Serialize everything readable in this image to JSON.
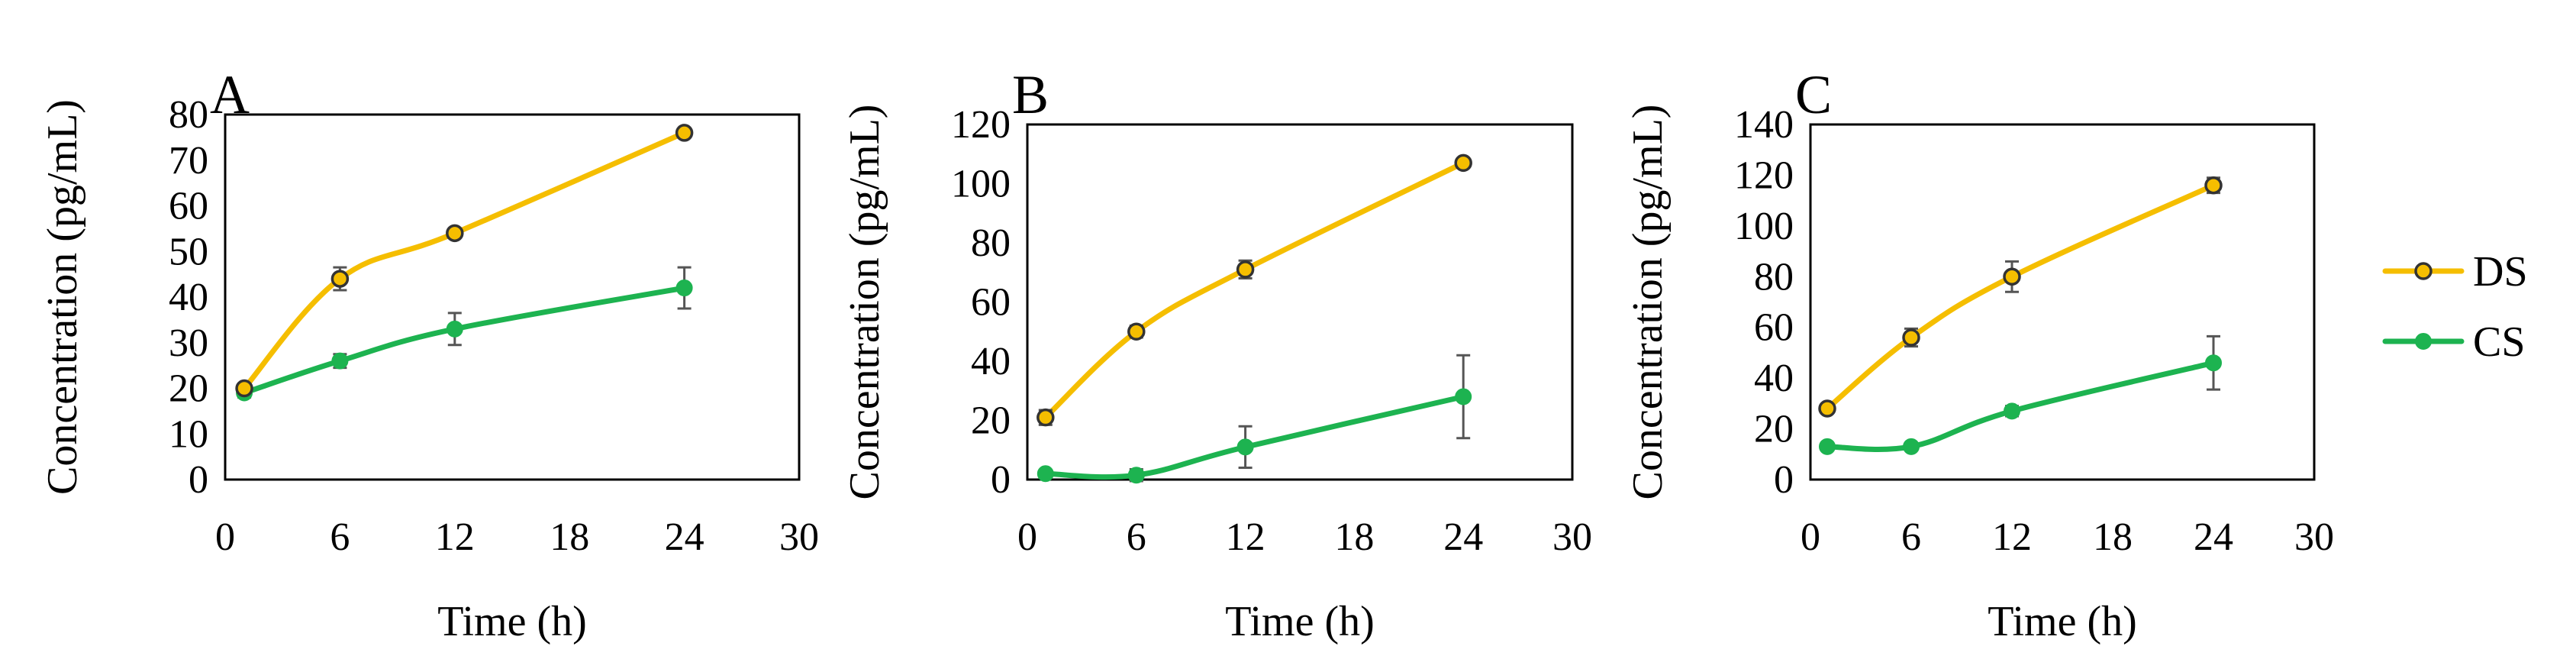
{
  "chart_data": [
    {
      "type": "line",
      "panel_label": "A",
      "xlabel": "Time (h)",
      "ylabel": "Concentration (pg/mL)",
      "xlim": [
        0,
        30
      ],
      "ylim": [
        0,
        80
      ],
      "xticks": [
        0,
        6,
        12,
        18,
        24,
        30
      ],
      "yticks": [
        0,
        10,
        20,
        30,
        40,
        50,
        60,
        70,
        80
      ],
      "grid": false,
      "series": [
        {
          "name": "DS",
          "x": [
            1,
            6,
            12,
            24
          ],
          "values": [
            20,
            44,
            54,
            76
          ],
          "errors": [
            1,
            2.5,
            1,
            1
          ]
        },
        {
          "name": "CS",
          "x": [
            1,
            6,
            12,
            24
          ],
          "values": [
            19,
            26,
            33,
            42
          ],
          "errors": [
            1,
            1.5,
            3.5,
            4.5
          ]
        }
      ]
    },
    {
      "type": "line",
      "panel_label": "B",
      "xlabel": "Time (h)",
      "ylabel": "Concentration (pg/mL)",
      "xlim": [
        0,
        30
      ],
      "ylim": [
        0,
        120
      ],
      "xticks": [
        0,
        6,
        12,
        18,
        24,
        30
      ],
      "yticks": [
        0,
        20,
        40,
        60,
        80,
        100,
        120
      ],
      "grid": false,
      "series": [
        {
          "name": "DS",
          "x": [
            1,
            6,
            12,
            24
          ],
          "values": [
            21,
            50,
            71,
            107
          ],
          "errors": [
            2.5,
            2,
            3,
            1.5
          ]
        },
        {
          "name": "CS",
          "x": [
            1,
            6,
            12,
            24
          ],
          "values": [
            2,
            1.5,
            11,
            28
          ],
          "errors": [
            0.8,
            2,
            7,
            14
          ]
        }
      ]
    },
    {
      "type": "line",
      "panel_label": "C",
      "xlabel": "Time (h)",
      "ylabel": "Concentration (pg/mL)",
      "xlim": [
        0,
        30
      ],
      "ylim": [
        0,
        140
      ],
      "xticks": [
        0,
        6,
        12,
        18,
        24,
        30
      ],
      "yticks": [
        0,
        20,
        40,
        60,
        80,
        100,
        120,
        140
      ],
      "grid": false,
      "series": [
        {
          "name": "DS",
          "x": [
            1,
            6,
            12,
            24
          ],
          "values": [
            28,
            56,
            80,
            116
          ],
          "errors": [
            1.5,
            3.5,
            6,
            3
          ]
        },
        {
          "name": "CS",
          "x": [
            1,
            6,
            12,
            24
          ],
          "values": [
            13,
            13,
            27,
            46
          ],
          "errors": [
            1,
            1,
            2,
            10.5
          ]
        }
      ]
    }
  ],
  "legend": {
    "placement": "right",
    "entries": [
      {
        "name": "DS",
        "color": "#F5BE00",
        "marker_fill": "#F5BE00",
        "marker_stroke": "#333333"
      },
      {
        "name": "CS",
        "color": "#1DB350",
        "marker_fill": "#1DB350",
        "marker_stroke": "#1DB350"
      }
    ]
  },
  "colors": {
    "DS": "#F5BE00",
    "CS": "#1DB350",
    "errorbar": "#555555",
    "axis": "#000000"
  }
}
